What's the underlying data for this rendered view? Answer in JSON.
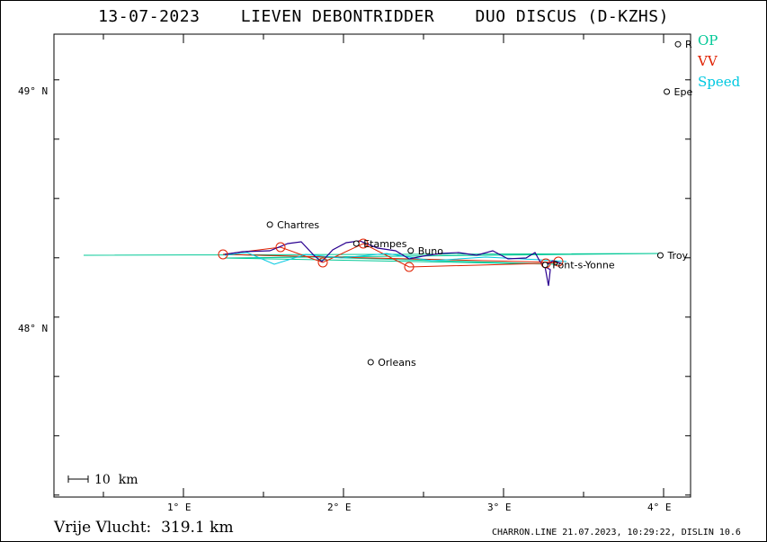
{
  "title": "13-07-2023    LIEVEN DEBONTRIDDER    DUO DISCUS (D-KZHS)",
  "legend": [
    {
      "label": "OP",
      "color": "#00c896"
    },
    {
      "label": "VV",
      "color": "#e02000"
    },
    {
      "label": "Speed",
      "color": "#00c8e0"
    }
  ],
  "axes": {
    "lon_ticks": [
      "1° E",
      "2° E",
      "3° E",
      "4° E"
    ],
    "lat_ticks": [
      "49° N",
      "48° N"
    ]
  },
  "scale_label": "10  km",
  "footer": {
    "distance": "Vrije Vlucht:  319.1 km",
    "credit": "CHARRON.LINE 21.07.2023, 10:29:22, DISLIN 10.6"
  },
  "towns": [
    {
      "name": "R",
      "lon": 4.09,
      "lat": 49.2
    },
    {
      "name": "Epe",
      "lon": 4.02,
      "lat": 49.0
    },
    {
      "name": "Chartres",
      "lon": 1.54,
      "lat": 48.44
    },
    {
      "name": "Etampes",
      "lon": 2.08,
      "lat": 48.36
    },
    {
      "name": "Buno",
      "lon": 2.42,
      "lat": 48.33
    },
    {
      "name": "Pont-s-Yonne",
      "lon": 3.26,
      "lat": 48.27
    },
    {
      "name": "Troy",
      "lon": 3.98,
      "lat": 48.31
    },
    {
      "name": "Orleans",
      "lon": 2.17,
      "lat": 47.86
    }
  ],
  "colors": {
    "op": "#00c896",
    "vv": "#e02000",
    "speed": "#00c8e0",
    "track": "#2a0090"
  }
}
